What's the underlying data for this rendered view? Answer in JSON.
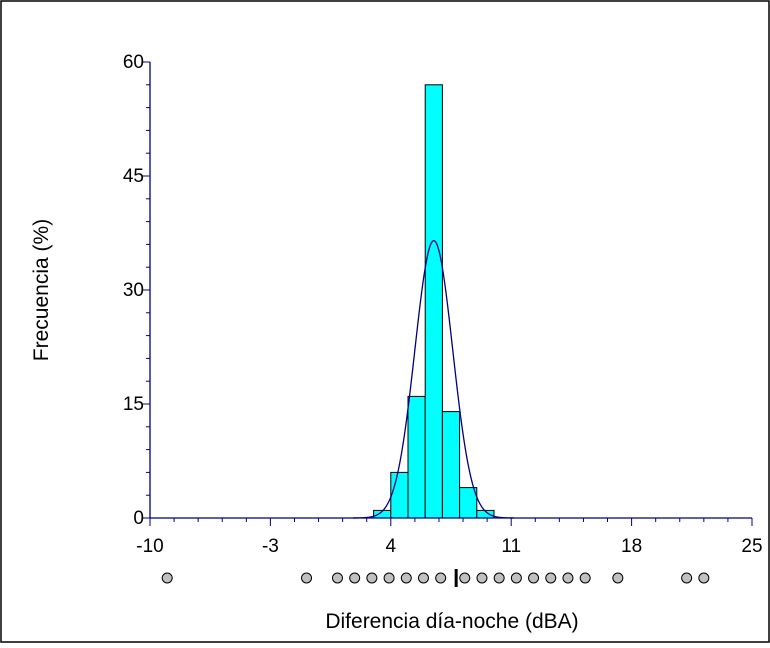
{
  "chart_data": {
    "type": "bar",
    "xlabel": "Diferencia día-noche (dBA)",
    "ylabel": "Frecuencia (%)",
    "xlim": [
      -10,
      25
    ],
    "ylim": [
      0,
      60
    ],
    "xticks": [
      "-10",
      "-3",
      "4",
      "11",
      "18",
      "25"
    ],
    "yticks": [
      "0",
      "15",
      "30",
      "45",
      "60"
    ],
    "bins": [
      {
        "from": 3.0,
        "to": 4.0,
        "value": 1
      },
      {
        "from": 4.0,
        "to": 5.0,
        "value": 6
      },
      {
        "from": 5.0,
        "to": 6.0,
        "value": 16
      },
      {
        "from": 6.0,
        "to": 7.0,
        "value": 57
      },
      {
        "from": 7.0,
        "to": 8.0,
        "value": 14
      },
      {
        "from": 8.0,
        "to": 9.0,
        "value": 4
      },
      {
        "from": 9.0,
        "to": 10.0,
        "value": 1
      }
    ],
    "fitted_curve": {
      "type": "normal",
      "peak_x": 6.5,
      "peak_y": 36.5,
      "sd": 1.1
    },
    "rug_points": [
      -9,
      -0.9,
      0.9,
      1.9,
      2.9,
      3.9,
      4.9,
      5.9,
      6.9,
      8.3,
      9.3,
      10.3,
      11.3,
      12.3,
      13.3,
      14.3,
      15.3,
      17.2,
      21.2,
      22.2
    ],
    "rug_median": 7.8,
    "colors": {
      "bar_fill": "#00ffff",
      "bar_stroke": "#000000",
      "curve": "#000080",
      "axis": "#000080",
      "rug_fill": "#c0c0c0"
    }
  }
}
